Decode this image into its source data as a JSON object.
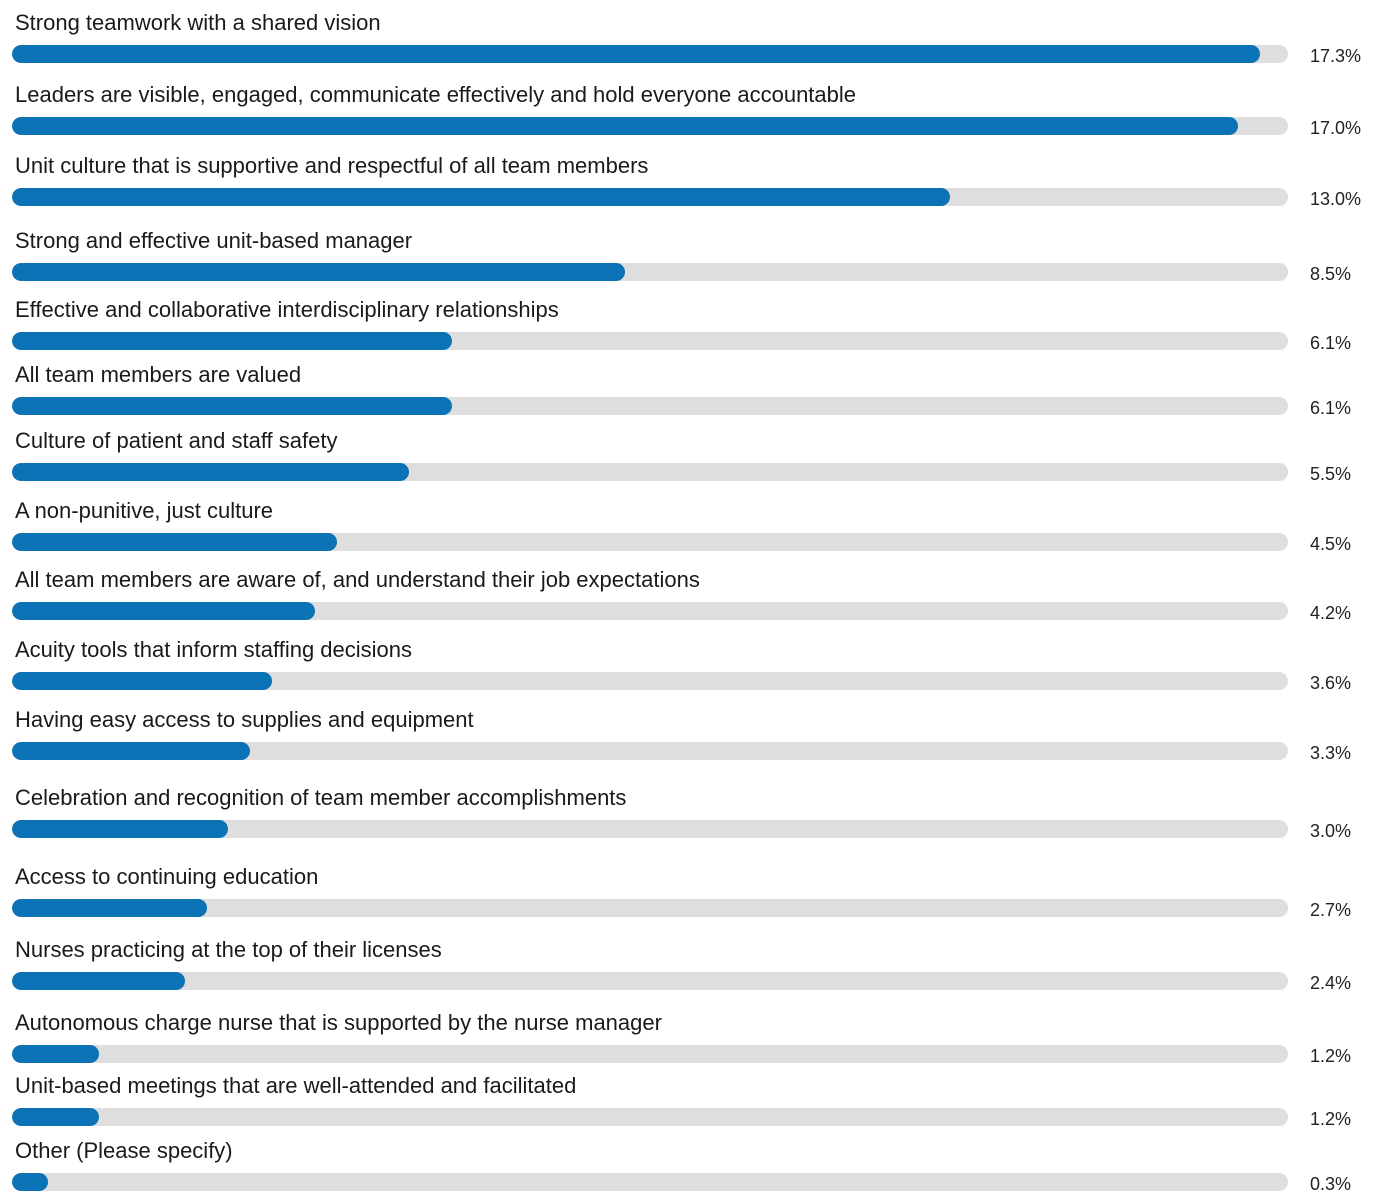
{
  "chart_data": {
    "type": "bar",
    "orientation": "horizontal",
    "categories": [
      "Strong teamwork with a shared vision",
      "Leaders are visible, engaged, communicate effectively and hold everyone accountable",
      "Unit culture that is supportive and respectful of all team members",
      "Strong and effective unit-based manager",
      "Effective and collaborative interdisciplinary relationships",
      "All team members are valued",
      "Culture of patient and staff safety",
      "A non-punitive, just culture",
      "All team members are aware of, and understand their job expectations",
      "Acuity tools that inform staffing decisions",
      "Having easy access to supplies and equipment",
      "Celebration and recognition of team member accomplishments",
      "Access to continuing education",
      "Nurses practicing at the top of their licenses",
      "Autonomous charge nurse that is supported by the nurse manager",
      "Unit-based meetings that are well-attended and facilitated",
      "Other (Please specify)"
    ],
    "values": [
      17.3,
      17.0,
      13.0,
      8.5,
      6.1,
      6.1,
      5.5,
      4.5,
      4.2,
      3.6,
      3.3,
      3.0,
      2.7,
      2.4,
      1.2,
      1.2,
      0.3
    ],
    "value_labels": [
      "17.3%",
      "17.0%",
      "13.0%",
      "8.5%",
      "6.1%",
      "6.1%",
      "5.5%",
      "4.5%",
      "4.2%",
      "3.6%",
      "3.3%",
      "3.0%",
      "2.7%",
      "2.4%",
      "1.2%",
      "1.2%",
      "0.3%"
    ],
    "unit": "%",
    "xlim": [
      0,
      17.3
    ],
    "grid": false,
    "colors": {
      "bar": "#0a72b5",
      "track": "#dedede"
    }
  }
}
